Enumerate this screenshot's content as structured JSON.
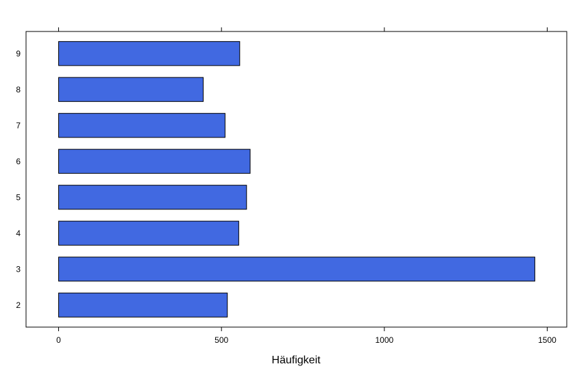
{
  "chart_data": {
    "type": "bar",
    "orientation": "horizontal",
    "categories": [
      "2",
      "3",
      "4",
      "5",
      "6",
      "7",
      "8",
      "9"
    ],
    "values": [
      518,
      1462,
      553,
      577,
      588,
      511,
      444,
      556
    ],
    "xlabel": "Häufigkeit",
    "ylabel": "",
    "xlim": [
      -100,
      1560
    ],
    "xticks": [
      "0",
      "500",
      "1000",
      "1500"
    ],
    "xtick_values": [
      0,
      500,
      1000,
      1500
    ],
    "grid": false,
    "bar_color": "#4169E1",
    "bar_edge_color": "#000000"
  }
}
